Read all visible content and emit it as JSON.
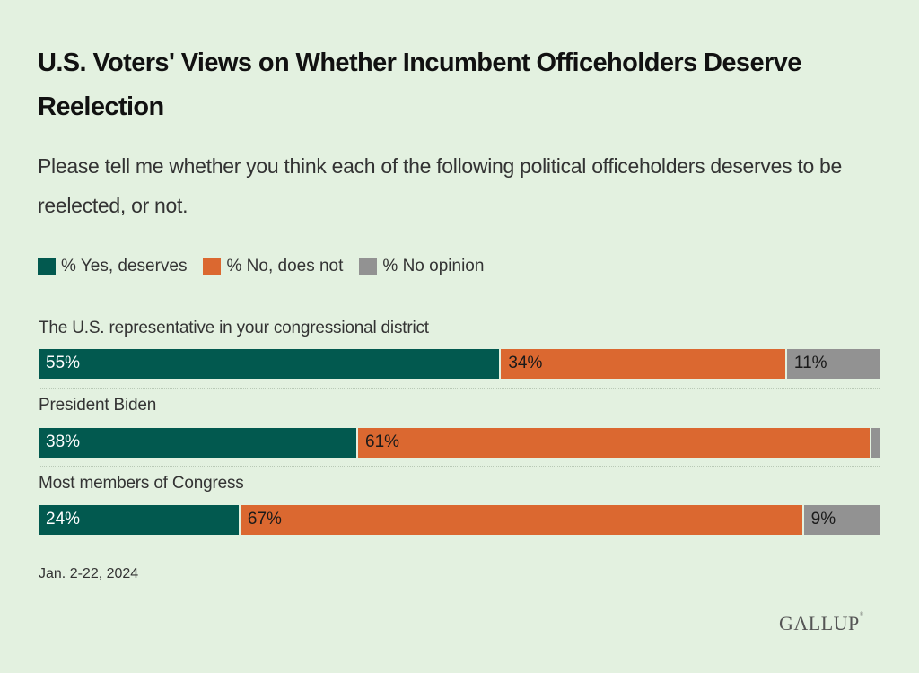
{
  "title": "U.S. Voters' Views on Whether Incumbent Officeholders Deserve Reelection",
  "subtitle": "Please tell me whether you think each of the following political officeholders deserves to be reelected, or not.",
  "footnote": "Jan. 2-22, 2024",
  "logo": "GALLUP",
  "colors": {
    "yes": "#02594f",
    "no": "#db6830",
    "no_opinion": "#929292",
    "background": "#e3f1e0"
  },
  "chart_data": {
    "type": "bar",
    "orientation": "horizontal",
    "stacked": true,
    "title": "U.S. Voters' Views on Whether Incumbent Officeholders Deserve Reelection",
    "subtitle": "Please tell me whether you think each of the following political officeholders deserves to be reelected, or not.",
    "categories": [
      "The U.S. representative in your congressional district",
      "President Biden",
      "Most members of Congress"
    ],
    "series": [
      {
        "name": "% Yes, deserves",
        "values": [
          55,
          38,
          24
        ],
        "labels": [
          "55%",
          "38%",
          "24%"
        ]
      },
      {
        "name": "% No, does not",
        "values": [
          34,
          61,
          67
        ],
        "labels": [
          "34%",
          "61%",
          "67%"
        ]
      },
      {
        "name": "% No opinion",
        "values": [
          11,
          1,
          9
        ],
        "labels": [
          "11%",
          "",
          "9%"
        ]
      }
    ],
    "xlim": [
      0,
      100
    ],
    "legend": "top-left",
    "grid": false,
    "xlabel": "",
    "ylabel": "",
    "note": "Jan. 2-22, 2024"
  }
}
